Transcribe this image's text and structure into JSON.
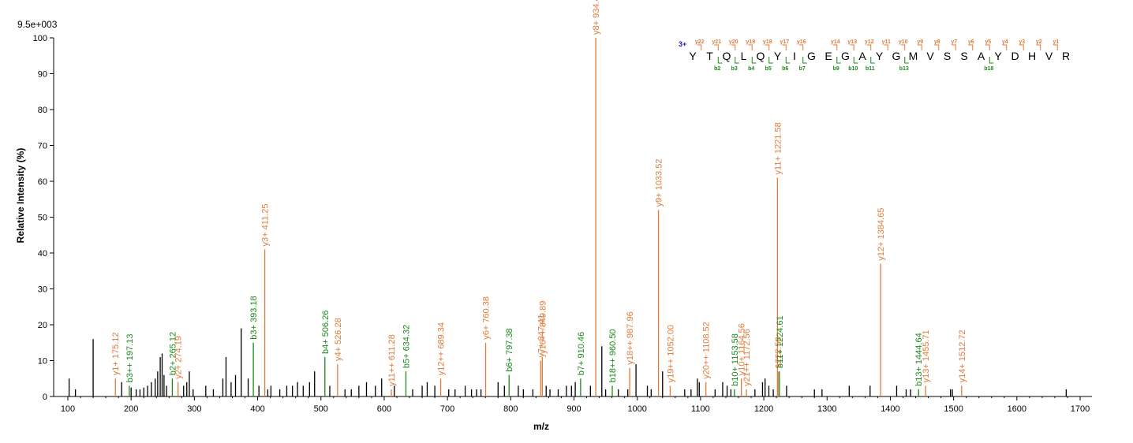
{
  "chart_data": {
    "type": "bar",
    "scale_label": "9.5e+003",
    "xlabel": "m/z",
    "ylabel": "Relative   Intensity (%)",
    "xlim": [
      80,
      1720
    ],
    "ylim": [
      0,
      100
    ],
    "x_ticks": [
      100,
      200,
      300,
      400,
      500,
      600,
      700,
      800,
      900,
      1000,
      1100,
      1200,
      1300,
      1400,
      1500,
      1600,
      1700
    ],
    "y_ticks": [
      0,
      10,
      20,
      30,
      40,
      50,
      60,
      70,
      80,
      90,
      100
    ],
    "colors": {
      "y": "#e07b39",
      "b": "#1a8a1a",
      "noise": "#000000",
      "charge": "#1a1aa8"
    },
    "annotated_peaks": [
      {
        "mz": 175.12,
        "intensity": 5,
        "ion": "y",
        "label": "y1+ 175.12"
      },
      {
        "mz": 197.13,
        "intensity": 3,
        "ion": "b",
        "label": "b3++ 197.13"
      },
      {
        "mz": 265.12,
        "intensity": 5,
        "ion": "b",
        "label": "b2+ 265.12"
      },
      {
        "mz": 274.19,
        "intensity": 4,
        "ion": "y",
        "label": "y2+ 274.19"
      },
      {
        "mz": 393.18,
        "intensity": 15,
        "ion": "b",
        "label": "b3+ 393.18"
      },
      {
        "mz": 411.25,
        "intensity": 41,
        "ion": "y",
        "label": "y3+ 411.25"
      },
      {
        "mz": 506.26,
        "intensity": 11,
        "ion": "b",
        "label": "b4+ 506.26"
      },
      {
        "mz": 526.28,
        "intensity": 9,
        "ion": "y",
        "label": "y4+ 526.28"
      },
      {
        "mz": 611.28,
        "intensity": 2,
        "ion": "y",
        "label": "y11++ 611.28"
      },
      {
        "mz": 634.32,
        "intensity": 7,
        "ion": "b",
        "label": "b5+ 634.32"
      },
      {
        "mz": 689.34,
        "intensity": 5,
        "ion": "y",
        "label": "y12++ 689.34"
      },
      {
        "mz": 760.38,
        "intensity": 15,
        "ion": "y",
        "label": "y6+ 760.38"
      },
      {
        "mz": 797.38,
        "intensity": 6,
        "ion": "b",
        "label": "b6+ 797.38"
      },
      {
        "mz": 847.41,
        "intensity": 10,
        "ion": "y",
        "label": "y7+ 847.41"
      },
      {
        "mz": 849.89,
        "intensity": 11,
        "ion": "y",
        "label": "y16++ 849.89"
      },
      {
        "mz": 910.46,
        "intensity": 5,
        "ion": "b",
        "label": "b7+ 910.46"
      },
      {
        "mz": 934.44,
        "intensity": 100,
        "ion": "y",
        "label": "y8+ 934.44"
      },
      {
        "mz": 960.5,
        "intensity": 3,
        "ion": "b",
        "label": "b18++ 960.50"
      },
      {
        "mz": 987.96,
        "intensity": 8,
        "ion": "y",
        "label": "y18++ 987.96"
      },
      {
        "mz": 1033.52,
        "intensity": 52,
        "ion": "y",
        "label": "y9+ 1033.52"
      },
      {
        "mz": 1052.0,
        "intensity": 3,
        "ion": "y",
        "label": "y19++ 1052.00"
      },
      {
        "mz": 1108.52,
        "intensity": 4,
        "ion": "y",
        "label": "y20++ 1108.52"
      },
      {
        "mz": 1153.58,
        "intensity": 2,
        "ion": "b",
        "label": "b10+ 1153.58"
      },
      {
        "mz": 1164.56,
        "intensity": 5,
        "ion": "y",
        "label": "y10+ 1164.56"
      },
      {
        "mz": 1172.56,
        "intensity": 2,
        "ion": "y",
        "label": "y21++ 1172.56"
      },
      {
        "mz": 1221.58,
        "intensity": 61,
        "ion": "y",
        "label": "y11+ 1221.58"
      },
      {
        "mz": 1222.58,
        "intensity": 7,
        "ion": "y",
        "label": "1222.58"
      },
      {
        "mz": 1224.61,
        "intensity": 7,
        "ion": "b",
        "label": "b11+ 1224.61"
      },
      {
        "mz": 1384.65,
        "intensity": 37,
        "ion": "y",
        "label": "y12+ 1384.65"
      },
      {
        "mz": 1444.64,
        "intensity": 2,
        "ion": "b",
        "label": "b13+ 1444.64"
      },
      {
        "mz": 1455.71,
        "intensity": 3,
        "ion": "y",
        "label": "y13+ 1455.71"
      },
      {
        "mz": 1512.72,
        "intensity": 3,
        "ion": "y",
        "label": "y14+ 1512.72"
      }
    ],
    "unlabeled_peaks": [
      [
        102,
        5
      ],
      [
        112,
        2
      ],
      [
        140,
        16
      ],
      [
        185,
        4
      ],
      [
        200,
        2.5
      ],
      [
        208,
        2
      ],
      [
        214,
        2
      ],
      [
        220,
        2.5
      ],
      [
        226,
        3
      ],
      [
        232,
        4
      ],
      [
        238,
        5
      ],
      [
        242,
        7
      ],
      [
        246,
        11
      ],
      [
        249,
        12
      ],
      [
        252,
        6
      ],
      [
        256,
        3
      ],
      [
        283,
        3
      ],
      [
        288,
        4
      ],
      [
        292,
        7
      ],
      [
        298,
        2
      ],
      [
        318,
        3
      ],
      [
        330,
        2
      ],
      [
        345,
        5
      ],
      [
        350,
        11
      ],
      [
        358,
        4
      ],
      [
        365,
        6
      ],
      [
        374,
        19
      ],
      [
        385,
        5
      ],
      [
        402,
        3
      ],
      [
        416,
        2
      ],
      [
        421,
        3
      ],
      [
        435,
        2
      ],
      [
        446,
        3
      ],
      [
        455,
        3
      ],
      [
        463,
        4
      ],
      [
        472,
        3
      ],
      [
        482,
        4
      ],
      [
        490,
        7
      ],
      [
        514,
        3
      ],
      [
        538,
        2
      ],
      [
        548,
        2
      ],
      [
        560,
        3
      ],
      [
        572,
        4
      ],
      [
        586,
        3
      ],
      [
        596,
        5
      ],
      [
        616,
        3
      ],
      [
        645,
        2
      ],
      [
        660,
        3
      ],
      [
        668,
        4
      ],
      [
        680,
        3
      ],
      [
        702,
        2
      ],
      [
        712,
        2
      ],
      [
        728,
        3
      ],
      [
        738,
        2
      ],
      [
        746,
        2
      ],
      [
        753,
        2
      ],
      [
        780,
        4
      ],
      [
        790,
        3
      ],
      [
        812,
        3
      ],
      [
        820,
        2
      ],
      [
        835,
        2
      ],
      [
        856,
        3
      ],
      [
        862,
        2
      ],
      [
        875,
        2
      ],
      [
        888,
        3
      ],
      [
        896,
        3
      ],
      [
        902,
        4
      ],
      [
        926,
        3
      ],
      [
        944,
        14
      ],
      [
        950,
        2
      ],
      [
        970,
        2
      ],
      [
        985,
        2
      ],
      [
        998,
        9
      ],
      [
        1016,
        3
      ],
      [
        1022,
        2
      ],
      [
        1040,
        7
      ],
      [
        1075,
        2
      ],
      [
        1085,
        2
      ],
      [
        1095,
        5
      ],
      [
        1098,
        4
      ],
      [
        1123,
        2
      ],
      [
        1135,
        4
      ],
      [
        1142,
        3
      ],
      [
        1148,
        2
      ],
      [
        1186,
        2
      ],
      [
        1198,
        4
      ],
      [
        1202,
        5
      ],
      [
        1208,
        3
      ],
      [
        1215,
        2
      ],
      [
        1236,
        3
      ],
      [
        1280,
        2
      ],
      [
        1292,
        2
      ],
      [
        1335,
        3
      ],
      [
        1368,
        3
      ],
      [
        1410,
        3
      ],
      [
        1425,
        2
      ],
      [
        1432,
        2
      ],
      [
        1495,
        2
      ],
      [
        1498,
        2
      ],
      [
        1678,
        2
      ]
    ]
  },
  "peptide": {
    "charge": "3+",
    "sequence": [
      "Y",
      "T",
      "Q",
      "L",
      "Q",
      "Y",
      "I",
      "G",
      "E",
      "G",
      "A",
      "Y",
      "G",
      "M",
      "V",
      "S",
      "S",
      "A",
      "Y",
      "D",
      "H",
      "V",
      "R"
    ],
    "y_ions": [
      {
        "after": 1,
        "tag": "y22"
      },
      {
        "after": 2,
        "tag": "y21"
      },
      {
        "after": 3,
        "tag": "y20"
      },
      {
        "after": 4,
        "tag": "y19"
      },
      {
        "after": 5,
        "tag": "y18"
      },
      {
        "after": 6,
        "tag": "y17"
      },
      {
        "after": 7,
        "tag": "y16"
      },
      {
        "after": 9,
        "tag": "y14"
      },
      {
        "after": 10,
        "tag": "y13"
      },
      {
        "after": 11,
        "tag": "y12"
      },
      {
        "after": 12,
        "tag": "y11"
      },
      {
        "after": 13,
        "tag": "y10"
      },
      {
        "after": 14,
        "tag": "y9"
      },
      {
        "after": 15,
        "tag": "y8"
      },
      {
        "after": 16,
        "tag": "y7"
      },
      {
        "after": 17,
        "tag": "y6"
      },
      {
        "after": 18,
        "tag": "y5"
      },
      {
        "after": 19,
        "tag": "y4"
      },
      {
        "after": 20,
        "tag": "y3"
      },
      {
        "after": 21,
        "tag": "y2"
      },
      {
        "after": 22,
        "tag": "y1"
      }
    ],
    "b_ions": [
      {
        "after": 2,
        "tag": "b2"
      },
      {
        "after": 3,
        "tag": "b3"
      },
      {
        "after": 4,
        "tag": "b4"
      },
      {
        "after": 5,
        "tag": "b5"
      },
      {
        "after": 6,
        "tag": "b6"
      },
      {
        "after": 7,
        "tag": "b7"
      },
      {
        "after": 9,
        "tag": "b9"
      },
      {
        "after": 10,
        "tag": "b10"
      },
      {
        "after": 11,
        "tag": "b11"
      },
      {
        "after": 13,
        "tag": "b13"
      },
      {
        "after": 18,
        "tag": "b18"
      }
    ]
  }
}
